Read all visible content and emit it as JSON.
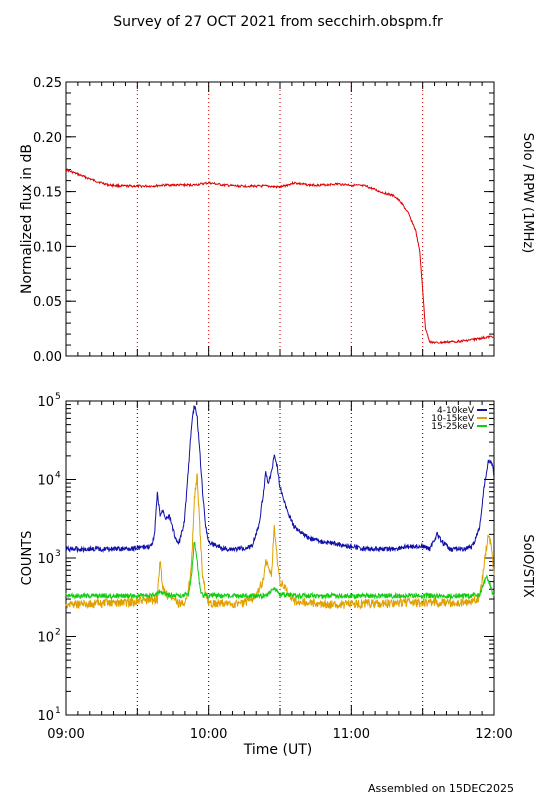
{
  "title": "Survey of 27 OCT 2021 from secchirh.obspm.fr",
  "footer": "Assembled on 15DEC2025",
  "x_axis": {
    "label": "Time (UT)",
    "tick_labels": [
      "09:00",
      "10:00",
      "11:00",
      "12:00"
    ],
    "tick_values_hours": [
      9,
      10,
      11,
      12
    ],
    "range_hours": [
      9,
      12
    ],
    "dotted_lines_hours": [
      9.5,
      10.0,
      10.5,
      11.0,
      11.5
    ]
  },
  "chart_data": [
    {
      "type": "line",
      "panel": "top",
      "ylabel": "Normalized flux in dB",
      "right_label": "Solo / RPW (1MHz)",
      "ylim": [
        0,
        0.25
      ],
      "yticks": [
        "0.00",
        "0.05",
        "0.10",
        "0.15",
        "0.20",
        "0.25"
      ],
      "ytick_values": [
        0,
        0.05,
        0.1,
        0.15,
        0.2,
        0.25
      ],
      "series": [
        {
          "color": "#dd0000",
          "x": [
            9.0,
            9.1,
            9.2,
            9.3,
            9.4,
            9.5,
            9.6,
            9.7,
            9.8,
            9.9,
            10.0,
            10.1,
            10.2,
            10.3,
            10.4,
            10.5,
            10.6,
            10.7,
            10.8,
            10.9,
            11.0,
            11.1,
            11.2,
            11.3,
            11.35,
            11.4,
            11.45,
            11.48,
            11.5,
            11.52,
            11.55,
            11.6,
            11.7,
            11.8,
            11.9,
            12.0
          ],
          "values": [
            0.17,
            0.165,
            0.16,
            0.156,
            0.155,
            0.155,
            0.155,
            0.156,
            0.156,
            0.156,
            0.158,
            0.156,
            0.155,
            0.155,
            0.155,
            0.154,
            0.158,
            0.156,
            0.156,
            0.157,
            0.156,
            0.155,
            0.15,
            0.146,
            0.14,
            0.13,
            0.115,
            0.095,
            0.06,
            0.025,
            0.013,
            0.012,
            0.013,
            0.014,
            0.016,
            0.018
          ]
        }
      ]
    },
    {
      "type": "line",
      "panel": "bottom",
      "ylabel": "COUNTS",
      "right_label": "SolO/STIX",
      "yscale": "log",
      "ylim": [
        10,
        100000
      ],
      "yticks": [
        "10",
        "10",
        "10",
        "10",
        "10"
      ],
      "ytick_exponents": [
        "1",
        "2",
        "3",
        "4",
        "5"
      ],
      "ytick_values": [
        10,
        100,
        1000,
        10000,
        100000
      ],
      "legend_position": "top-right",
      "series": [
        {
          "name": "4-10keV",
          "color": "#1010aa",
          "x": [
            9.0,
            9.2,
            9.4,
            9.5,
            9.6,
            9.62,
            9.64,
            9.66,
            9.68,
            9.7,
            9.72,
            9.74,
            9.76,
            9.78,
            9.8,
            9.83,
            9.86,
            9.88,
            9.9,
            9.92,
            9.94,
            9.96,
            9.98,
            10.0,
            10.1,
            10.2,
            10.3,
            10.35,
            10.38,
            10.4,
            10.42,
            10.44,
            10.46,
            10.48,
            10.5,
            10.55,
            10.6,
            10.7,
            10.8,
            10.9,
            11.0,
            11.1,
            11.2,
            11.3,
            11.4,
            11.5,
            11.55,
            11.6,
            11.65,
            11.7,
            11.8,
            11.85,
            11.9,
            11.93,
            11.96,
            11.98,
            12.0
          ],
          "values": [
            1300,
            1300,
            1300,
            1350,
            1400,
            2000,
            6500,
            3500,
            4000,
            3200,
            3500,
            2800,
            2000,
            1500,
            1700,
            3000,
            15000,
            50000,
            90000,
            60000,
            20000,
            6000,
            2500,
            1600,
            1300,
            1300,
            1400,
            2500,
            6000,
            12000,
            9000,
            12000,
            21000,
            15000,
            8000,
            4000,
            2500,
            1800,
            1600,
            1500,
            1400,
            1300,
            1300,
            1300,
            1400,
            1400,
            1300,
            2000,
            1500,
            1300,
            1300,
            1400,
            2500,
            8000,
            17000,
            17000,
            12000
          ]
        },
        {
          "name": "10-15keV",
          "color": "#e0a000",
          "x": [
            9.0,
            9.2,
            9.4,
            9.5,
            9.6,
            9.64,
            9.66,
            9.68,
            9.7,
            9.75,
            9.8,
            9.85,
            9.88,
            9.9,
            9.92,
            9.94,
            9.96,
            10.0,
            10.1,
            10.2,
            10.3,
            10.38,
            10.4,
            10.42,
            10.44,
            10.46,
            10.48,
            10.5,
            10.6,
            10.7,
            10.8,
            10.9,
            11.0,
            11.2,
            11.4,
            11.6,
            11.8,
            11.9,
            11.93,
            11.96,
            11.98,
            12.0
          ],
          "values": [
            260,
            260,
            270,
            280,
            290,
            300,
            900,
            400,
            350,
            300,
            260,
            300,
            800,
            6000,
            11000,
            2000,
            500,
            270,
            260,
            260,
            280,
            500,
            900,
            700,
            600,
            2500,
            1000,
            500,
            280,
            270,
            260,
            250,
            260,
            260,
            270,
            270,
            270,
            300,
            800,
            2000,
            1500,
            600
          ]
        },
        {
          "name": "15-25keV",
          "color": "#10cc10",
          "x": [
            9.0,
            9.2,
            9.4,
            9.5,
            9.6,
            9.66,
            9.7,
            9.8,
            9.86,
            9.88,
            9.9,
            9.92,
            9.94,
            9.96,
            10.0,
            10.2,
            10.4,
            10.46,
            10.48,
            10.5,
            10.6,
            10.8,
            11.0,
            11.2,
            11.4,
            11.6,
            11.8,
            11.9,
            11.95,
            11.97,
            12.0
          ],
          "values": [
            330,
            330,
            330,
            330,
            330,
            380,
            340,
            330,
            350,
            600,
            1700,
            900,
            400,
            330,
            330,
            330,
            330,
            420,
            380,
            340,
            330,
            330,
            330,
            330,
            330,
            330,
            330,
            340,
            600,
            450,
            330
          ]
        }
      ]
    }
  ]
}
